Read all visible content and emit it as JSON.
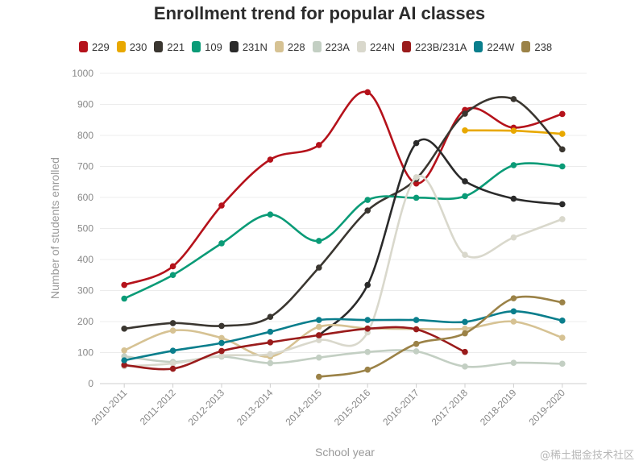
{
  "chart_data": {
    "type": "line",
    "title": "Enrollment trend for popular AI classes",
    "xlabel": "School year",
    "ylabel": "Number of students enrolled",
    "ylim": [
      0,
      1000
    ],
    "yticks": [
      0,
      100,
      200,
      300,
      400,
      500,
      600,
      700,
      800,
      900,
      1000
    ],
    "categories": [
      "2010-2011",
      "2011-2012",
      "2012-2013",
      "2013-2014",
      "2014-2015",
      "2015-2016",
      "2016-2017",
      "2017-2018",
      "2018-2019",
      "2019-2020"
    ],
    "grid": true,
    "legend_position": "top",
    "series": [
      {
        "name": "229",
        "color": "#b5121b",
        "values": [
          318,
          378,
          574,
          722,
          769,
          939,
          645,
          882,
          825,
          869
        ]
      },
      {
        "name": "230",
        "color": "#e8a800",
        "values": [
          null,
          null,
          null,
          null,
          null,
          null,
          null,
          816,
          815,
          805
        ]
      },
      {
        "name": "221",
        "color": "#3a3630",
        "values": [
          177,
          195,
          186,
          215,
          374,
          558,
          660,
          870,
          917,
          755
        ]
      },
      {
        "name": "109",
        "color": "#0a9b77",
        "values": [
          274,
          350,
          452,
          545,
          460,
          592,
          599,
          604,
          704,
          700
        ]
      },
      {
        "name": "231N",
        "color": "#2a2a2a",
        "values": [
          null,
          null,
          null,
          null,
          155,
          318,
          775,
          652,
          596,
          578
        ]
      },
      {
        "name": "228",
        "color": "#d6c293",
        "values": [
          107,
          171,
          147,
          87,
          183,
          178,
          176,
          177,
          200,
          148
        ]
      },
      {
        "name": "223A",
        "color": "#c3cfc3",
        "values": [
          88,
          70,
          87,
          66,
          84,
          102,
          104,
          55,
          67,
          64
        ]
      },
      {
        "name": "224N",
        "color": "#d9d8cc",
        "values": [
          56,
          65,
          90,
          95,
          140,
          165,
          665,
          415,
          471,
          530
        ]
      },
      {
        "name": "223B/231A",
        "color": "#9a1b1b",
        "values": [
          60,
          48,
          105,
          133,
          156,
          177,
          175,
          102,
          null,
          null
        ]
      },
      {
        "name": "224W",
        "color": "#0a7e8c",
        "values": [
          75,
          106,
          131,
          167,
          205,
          205,
          205,
          199,
          233,
          203
        ]
      },
      {
        "name": "238",
        "color": "#9b8247",
        "values": [
          null,
          null,
          null,
          null,
          22,
          45,
          128,
          162,
          275,
          262
        ]
      }
    ]
  },
  "watermark": "@稀土掘金技术社区"
}
